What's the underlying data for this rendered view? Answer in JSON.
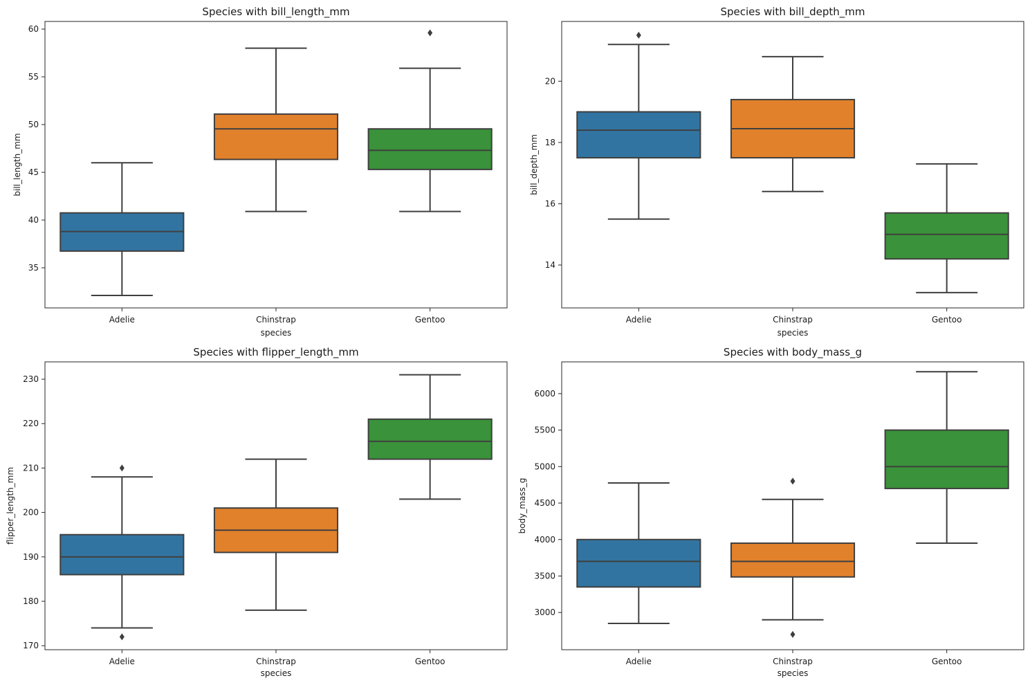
{
  "figure": {
    "background": "#ffffff",
    "line_color": "#3f3f3f",
    "axis_color": "#262626"
  },
  "chart_data": [
    {
      "type": "box",
      "title": "Species with bill_length_mm",
      "xlabel": "species",
      "ylabel": "bill_length_mm",
      "categories": [
        "Adelie",
        "Chinstrap",
        "Gentoo"
      ],
      "colors": [
        "#3274a1",
        "#e1812c",
        "#3a923a"
      ],
      "ylim": [
        30.8,
        60.8
      ],
      "yticks": [
        35,
        40,
        45,
        50,
        55,
        60
      ],
      "boxes": [
        {
          "category": "Adelie",
          "whisker_low": 32.1,
          "q1": 36.75,
          "median": 38.8,
          "q3": 40.75,
          "whisker_high": 46.0,
          "outliers": []
        },
        {
          "category": "Chinstrap",
          "whisker_low": 40.9,
          "q1": 46.35,
          "median": 49.55,
          "q3": 51.1,
          "whisker_high": 58.0,
          "outliers": []
        },
        {
          "category": "Gentoo",
          "whisker_low": 40.9,
          "q1": 45.3,
          "median": 47.3,
          "q3": 49.55,
          "whisker_high": 55.9,
          "outliers": [
            59.6
          ]
        }
      ]
    },
    {
      "type": "box",
      "title": "Species with bill_depth_mm",
      "xlabel": "species",
      "ylabel": "bill_depth_mm",
      "categories": [
        "Adelie",
        "Chinstrap",
        "Gentoo"
      ],
      "colors": [
        "#3274a1",
        "#e1812c",
        "#3a923a"
      ],
      "ylim": [
        12.6,
        21.95
      ],
      "yticks": [
        14,
        16,
        18,
        20
      ],
      "boxes": [
        {
          "category": "Adelie",
          "whisker_low": 15.5,
          "q1": 17.5,
          "median": 18.4,
          "q3": 19.0,
          "whisker_high": 21.2,
          "outliers": [
            21.5
          ]
        },
        {
          "category": "Chinstrap",
          "whisker_low": 16.4,
          "q1": 17.5,
          "median": 18.45,
          "q3": 19.4,
          "whisker_high": 20.8,
          "outliers": []
        },
        {
          "category": "Gentoo",
          "whisker_low": 13.1,
          "q1": 14.2,
          "median": 15.0,
          "q3": 15.7,
          "whisker_high": 17.3,
          "outliers": []
        }
      ]
    },
    {
      "type": "box",
      "title": "Species with flipper_length_mm",
      "xlabel": "species",
      "ylabel": "flipper_length_mm",
      "categories": [
        "Adelie",
        "Chinstrap",
        "Gentoo"
      ],
      "colors": [
        "#3274a1",
        "#e1812c",
        "#3a923a"
      ],
      "ylim": [
        169.1,
        233.9
      ],
      "yticks": [
        170,
        180,
        190,
        200,
        210,
        220,
        230
      ],
      "boxes": [
        {
          "category": "Adelie",
          "whisker_low": 174,
          "q1": 186,
          "median": 190,
          "q3": 195,
          "whisker_high": 208,
          "outliers": [
            172,
            210
          ]
        },
        {
          "category": "Chinstrap",
          "whisker_low": 178,
          "q1": 191,
          "median": 196,
          "q3": 201,
          "whisker_high": 212,
          "outliers": []
        },
        {
          "category": "Gentoo",
          "whisker_low": 203,
          "q1": 212,
          "median": 216,
          "q3": 221,
          "whisker_high": 231,
          "outliers": []
        }
      ]
    },
    {
      "type": "box",
      "title": "Species with body_mass_g",
      "xlabel": "species",
      "ylabel": "body_mass_g",
      "categories": [
        "Adelie",
        "Chinstrap",
        "Gentoo"
      ],
      "colors": [
        "#3274a1",
        "#e1812c",
        "#3a923a"
      ],
      "ylim": [
        2490,
        6435
      ],
      "yticks": [
        3000,
        3500,
        4000,
        4500,
        5000,
        5500,
        6000
      ],
      "boxes": [
        {
          "category": "Adelie",
          "whisker_low": 2850,
          "q1": 3350,
          "median": 3700,
          "q3": 4000,
          "whisker_high": 4775,
          "outliers": []
        },
        {
          "category": "Chinstrap",
          "whisker_low": 2900,
          "q1": 3487.5,
          "median": 3700,
          "q3": 3950,
          "whisker_high": 4550,
          "outliers": [
            2700,
            4800
          ]
        },
        {
          "category": "Gentoo",
          "whisker_low": 3950,
          "q1": 4700,
          "median": 5000,
          "q3": 5500,
          "whisker_high": 6300,
          "outliers": []
        }
      ]
    }
  ]
}
